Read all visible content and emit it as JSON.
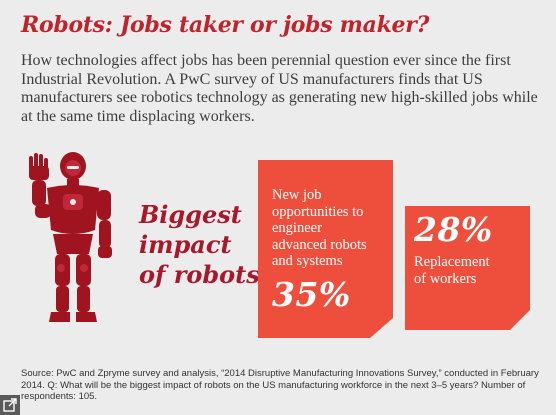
{
  "title": "Robots: Jobs taker or jobs maker?",
  "intro": "How technologies affect jobs has been perennial question ever since the first Industrial Revolution. A PwC survey of US manufacturers finds that US manufacturers see robotics technology as generating new high-skilled jobs while at the same time displacing workers.",
  "impact_label": [
    "Biggest",
    "impact",
    "of robots"
  ],
  "colors": {
    "title": "#c0242b",
    "impact": "#a8182a",
    "card": "#ee4f3c",
    "robot_dark": "#a0141f",
    "robot_light": "#c0283a",
    "background": "#ececec"
  },
  "chart_data": {
    "type": "bar",
    "categories": [
      "New job opportunities to engineer advanced robots and systems",
      "Replacement of workers"
    ],
    "values": [
      35,
      28
    ],
    "value_labels": [
      "35%",
      "28%"
    ],
    "category_labels": [
      [
        "New job",
        "opportunities to",
        "engineer",
        "advanced robots",
        "and systems"
      ],
      [
        "Replacement",
        "of workers"
      ]
    ],
    "title": "Biggest impact of robots",
    "unit": "%"
  },
  "source": "Source: PwC and Zpryme survey and analysis, “2014 Disruptive Manufacturing Innovations Survey,” conducted in February 2014. Q: What will be the biggest impact of robots on the US manufacturing workforce in the next 3–5 years? Number of respondents: 105.",
  "icons": {
    "expand": "expand-icon",
    "robot": "robot-illustration"
  }
}
